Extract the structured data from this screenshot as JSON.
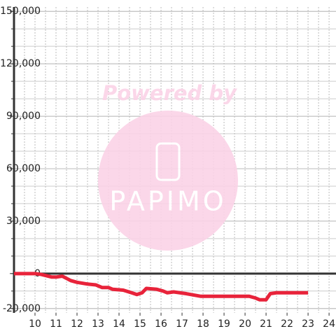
{
  "chart_data": {
    "type": "line",
    "watermark": {
      "text": "Powered by",
      "logo": "PAPIMO"
    },
    "xlim": [
      9,
      24.33
    ],
    "ylim": [
      -22500,
      152500
    ],
    "xticks": [
      10,
      11,
      12,
      13,
      14,
      15,
      16,
      17,
      18,
      19,
      20,
      21,
      22,
      23,
      24
    ],
    "yticks": [
      {
        "value": -20000,
        "label": "-20,000"
      },
      0,
      {
        "value": 30000,
        "label": "30,000"
      },
      {
        "value": 60000,
        "label": "60,000"
      },
      {
        "value": 90000,
        "label": "90,000"
      },
      {
        "value": 120000,
        "label": "120,000"
      },
      {
        "value": 150000,
        "label": "150,000"
      }
    ],
    "grid": true,
    "x_grid_step": 0.5,
    "y_grid_step": 10000,
    "series": [
      {
        "color": "#e8233a",
        "x": [
          9,
          10,
          10.3,
          10.8,
          11,
          11.3,
          11.7,
          12,
          12.5,
          12.9,
          13.2,
          13.5,
          13.7,
          14.2,
          14.6,
          14.85,
          15.1,
          15.3,
          15.8,
          16.1,
          16.3,
          16.6,
          17.2,
          17.9,
          18.5,
          19.5,
          20.2,
          20.5,
          20.7,
          21,
          21.2,
          21.5,
          22,
          23
        ],
        "values": [
          0,
          0,
          -500,
          -2000,
          -2000,
          -1500,
          -4000,
          -5000,
          -6000,
          -6500,
          -8000,
          -8000,
          -9000,
          -9500,
          -11000,
          -12000,
          -11000,
          -8500,
          -9000,
          -10000,
          -11000,
          -10500,
          -11500,
          -13000,
          -13000,
          -13000,
          -13000,
          -14000,
          -15000,
          -15000,
          -11500,
          -11000,
          -11000,
          -11000
        ]
      }
    ]
  }
}
